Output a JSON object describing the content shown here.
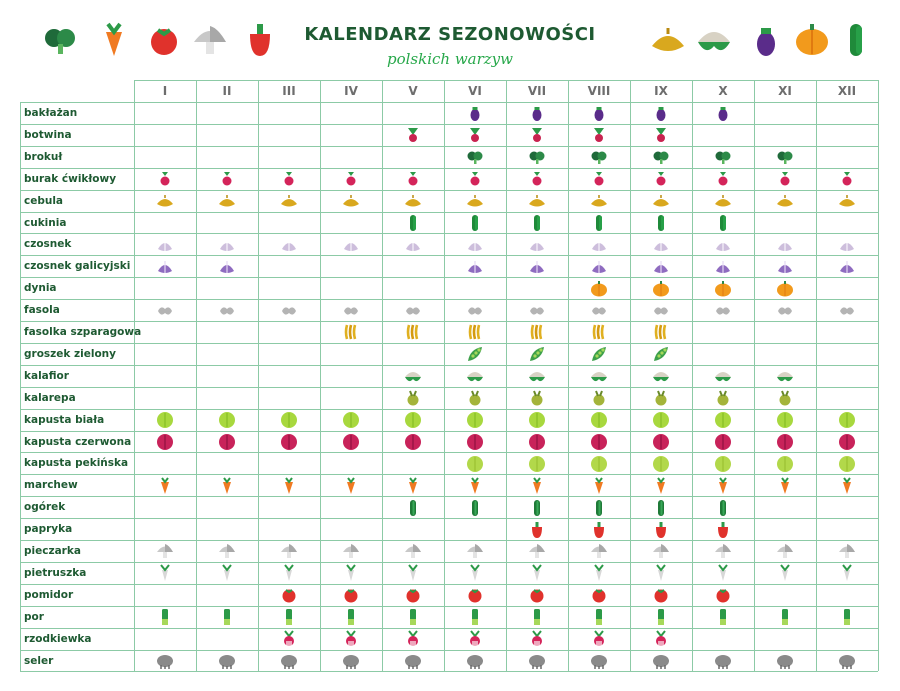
{
  "title": "KALENDARZ SEZONOWOŚCI",
  "subtitle": "polskich warzyw",
  "colors": {
    "title": "#1e5a32",
    "subtitle": "#27a84a",
    "grid": "#8ccaa6",
    "label": "#1e5a32"
  },
  "header_icons_left": [
    "broccoli-icon",
    "carrot-icon",
    "tomato-icon",
    "mushroom-icon",
    "pepper-icon"
  ],
  "header_icons_right": [
    "onion-icon",
    "cauliflower-icon",
    "eggplant-icon",
    "pumpkin-icon",
    "zucchini-icon"
  ],
  "months": [
    "I",
    "II",
    "III",
    "IV",
    "V",
    "VI",
    "VII",
    "VIII",
    "IX",
    "X",
    "XI",
    "XII"
  ],
  "vegetables": [
    {
      "name": "bakłażan",
      "icon": "eggplant",
      "months": [
        6,
        7,
        8,
        9,
        10
      ]
    },
    {
      "name": "botwina",
      "icon": "beet-leaves",
      "months": [
        5,
        6,
        7,
        8,
        9
      ]
    },
    {
      "name": "brokuł",
      "icon": "broccoli",
      "months": [
        6,
        7,
        8,
        9,
        10,
        11
      ]
    },
    {
      "name": "burak ćwikłowy",
      "icon": "beet",
      "months": [
        1,
        2,
        3,
        4,
        5,
        6,
        7,
        8,
        9,
        10,
        11,
        12
      ]
    },
    {
      "name": "cebula",
      "icon": "onion",
      "months": [
        1,
        2,
        3,
        4,
        5,
        6,
        7,
        8,
        9,
        10,
        11,
        12
      ]
    },
    {
      "name": "cukinia",
      "icon": "zucchini",
      "months": [
        5,
        6,
        7,
        8,
        9,
        10
      ]
    },
    {
      "name": "czosnek",
      "icon": "garlic",
      "months": [
        1,
        2,
        3,
        4,
        5,
        6,
        7,
        8,
        9,
        10,
        11,
        12
      ]
    },
    {
      "name": "czosnek galicyjski",
      "icon": "garlic-purple",
      "months": [
        1,
        2,
        6,
        7,
        8,
        9,
        10,
        11,
        12
      ]
    },
    {
      "name": "dynia",
      "icon": "pumpkin",
      "months": [
        8,
        9,
        10,
        11
      ]
    },
    {
      "name": "fasola",
      "icon": "bean",
      "months": [
        1,
        2,
        3,
        4,
        5,
        6,
        7,
        8,
        9,
        10,
        11,
        12
      ]
    },
    {
      "name": "fasolka szparagowa",
      "icon": "green-beans",
      "months": [
        4,
        5,
        6,
        7,
        8,
        9
      ]
    },
    {
      "name": "groszek zielony",
      "icon": "peas",
      "months": [
        6,
        7,
        8,
        9
      ]
    },
    {
      "name": "kalafior",
      "icon": "cauliflower",
      "months": [
        5,
        6,
        7,
        8,
        9,
        10,
        11
      ]
    },
    {
      "name": "kalarepa",
      "icon": "kohlrabi",
      "months": [
        5,
        6,
        7,
        8,
        9,
        10,
        11
      ]
    },
    {
      "name": "kapusta biała",
      "icon": "cabbage-white",
      "months": [
        1,
        2,
        3,
        4,
        5,
        6,
        7,
        8,
        9,
        10,
        11,
        12
      ]
    },
    {
      "name": "kapusta czerwona",
      "icon": "cabbage-red",
      "months": [
        1,
        2,
        3,
        4,
        5,
        6,
        7,
        8,
        9,
        10,
        11,
        12
      ]
    },
    {
      "name": "kapusta pekińska",
      "icon": "cabbage-chinese",
      "months": [
        6,
        7,
        8,
        9,
        10,
        11,
        12
      ]
    },
    {
      "name": "marchew",
      "icon": "carrot",
      "months": [
        1,
        2,
        3,
        4,
        5,
        6,
        7,
        8,
        9,
        10,
        11,
        12
      ]
    },
    {
      "name": "ogórek",
      "icon": "cucumber",
      "months": [
        5,
        6,
        7,
        8,
        9,
        10
      ]
    },
    {
      "name": "papryka",
      "icon": "pepper",
      "months": [
        7,
        8,
        9,
        10
      ]
    },
    {
      "name": "pieczarka",
      "icon": "mushroom",
      "months": [
        1,
        2,
        3,
        4,
        5,
        6,
        7,
        8,
        9,
        10,
        11,
        12
      ]
    },
    {
      "name": "pietruszka",
      "icon": "parsley-root",
      "months": [
        1,
        2,
        3,
        4,
        5,
        6,
        7,
        8,
        9,
        10,
        11,
        12
      ]
    },
    {
      "name": "pomidor",
      "icon": "tomato",
      "months": [
        3,
        4,
        5,
        6,
        7,
        8,
        9,
        10
      ]
    },
    {
      "name": "por",
      "icon": "leek",
      "months": [
        1,
        2,
        3,
        4,
        5,
        6,
        7,
        8,
        9,
        10,
        11,
        12
      ]
    },
    {
      "name": "rzodkiewka",
      "icon": "radish",
      "months": [
        3,
        4,
        5,
        6,
        7,
        8,
        9
      ]
    },
    {
      "name": "seler",
      "icon": "celery",
      "months": [
        1,
        2,
        3,
        4,
        5,
        6,
        7,
        8,
        9,
        10,
        11,
        12
      ]
    }
  ]
}
